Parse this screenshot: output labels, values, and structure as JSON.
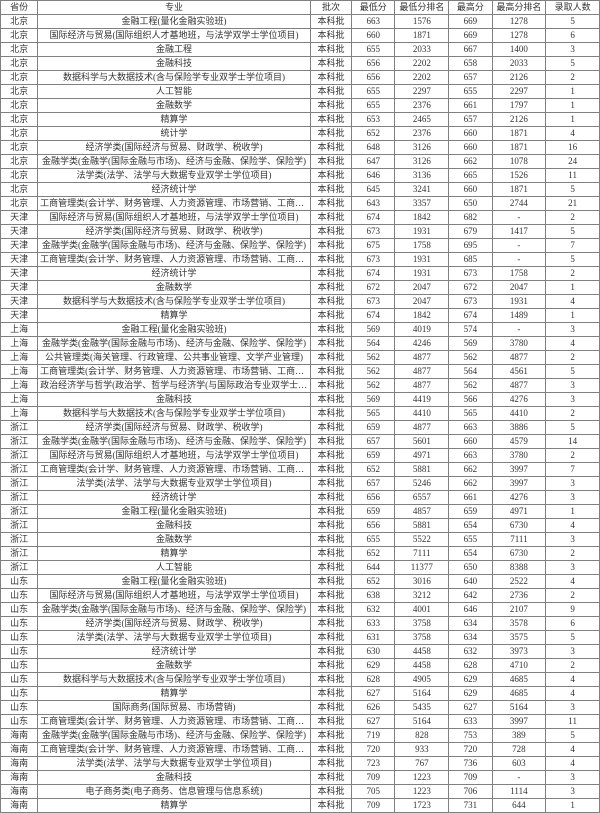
{
  "headers": [
    "省份",
    "专业",
    "批次",
    "最低分",
    "最低分排名",
    "最高分",
    "最高分排名",
    "录取人数"
  ],
  "rows": [
    [
      "北京",
      "金融工程(量化金融实验班)",
      "本科批",
      "663",
      "1576",
      "669",
      "1278",
      "5"
    ],
    [
      "北京",
      "国际经济与贸易(国际组织人才基地班，与法学双学士学位项目)",
      "本科批",
      "660",
      "1871",
      "669",
      "1278",
      "6"
    ],
    [
      "北京",
      "金融工程",
      "本科批",
      "655",
      "2033",
      "667",
      "1400",
      "3"
    ],
    [
      "北京",
      "金融科技",
      "本科批",
      "656",
      "2202",
      "658",
      "2033",
      "5"
    ],
    [
      "北京",
      "数据科学与大数据技术(含与保险学专业双学士学位项目)",
      "本科批",
      "656",
      "2202",
      "657",
      "2126",
      "2"
    ],
    [
      "北京",
      "人工智能",
      "本科批",
      "655",
      "2297",
      "655",
      "2297",
      "1"
    ],
    [
      "北京",
      "金融数学",
      "本科批",
      "655",
      "2376",
      "661",
      "1797",
      "1"
    ],
    [
      "北京",
      "精算学",
      "本科批",
      "653",
      "2465",
      "657",
      "2126",
      "1"
    ],
    [
      "北京",
      "统计学",
      "本科批",
      "652",
      "2376",
      "660",
      "1871",
      "4"
    ],
    [
      "北京",
      "经济学类(国际经济与贸易、财政学、税收学)",
      "本科批",
      "648",
      "3126",
      "660",
      "1871",
      "16"
    ],
    [
      "北京",
      "金融学类(金融学(国际金融与市场)、经济与金融、保险学、保险学)",
      "本科批",
      "647",
      "3126",
      "662",
      "1078",
      "24"
    ],
    [
      "北京",
      "法学类(法学、法学与大数据专业双学士学位项目)",
      "本科批",
      "646",
      "3136",
      "665",
      "1526",
      "11"
    ],
    [
      "北京",
      "经济统计学",
      "本科批",
      "645",
      "3241",
      "660",
      "1871",
      "5"
    ],
    [
      "北京",
      "工商管理类(会计学、财务管理、人力资源管理、市场营销、工商管理)",
      "本科批",
      "643",
      "3357",
      "650",
      "2744",
      "21"
    ],
    [
      "天津",
      "国际经济与贸易(国际组织人才基地班，与法学双学士学位项目)",
      "本科批",
      "674",
      "1842",
      "682",
      "-",
      "2"
    ],
    [
      "天津",
      "经济学类(国际经济与贸易、财政学、税收学)",
      "本科批",
      "673",
      "1931",
      "679",
      "1417",
      "5"
    ],
    [
      "天津",
      "金融学类(金融学(国际金融与市场)、经济与金融、保险学、保险学)",
      "本科批",
      "675",
      "1758",
      "695",
      "-",
      "7"
    ],
    [
      "天津",
      "工商管理类(会计学、财务管理、人力资源管理、市场营销、工商管理)",
      "本科批",
      "673",
      "1931",
      "685",
      "-",
      "5"
    ],
    [
      "天津",
      "经济统计学",
      "本科批",
      "674",
      "1931",
      "673",
      "1758",
      "2"
    ],
    [
      "天津",
      "金融数学",
      "本科批",
      "672",
      "2047",
      "672",
      "2047",
      "1"
    ],
    [
      "天津",
      "数据科学与大数据技术(含与保险学专业双学士学位项目)",
      "本科批",
      "673",
      "2047",
      "673",
      "1931",
      "4"
    ],
    [
      "天津",
      "精算学",
      "本科批",
      "674",
      "1842",
      "674",
      "1489",
      "1"
    ],
    [
      "上海",
      "金融工程(量化金融实验班)",
      "本科批",
      "569",
      "4019",
      "574",
      "-",
      "3"
    ],
    [
      "上海",
      "金融学类(金融学(国际金融与市场)、经济与金融、保险学、保险学)",
      "本科批",
      "564",
      "4246",
      "569",
      "3780",
      "4"
    ],
    [
      "上海",
      "公共管理类(海关管理、行政管理、公共事业管理、文学产业管理)",
      "本科批",
      "562",
      "4877",
      "562",
      "4877",
      "2"
    ],
    [
      "上海",
      "工商管理类(会计学、财务管理、人力资源管理、市场营销、工商管理)",
      "本科批",
      "562",
      "4877",
      "564",
      "4561",
      "5"
    ],
    [
      "上海",
      "政治经济学与哲学(政治学、哲学与经济学(与国际政治专业双学士学位项目、国际政治(含与统计学专业双学士学位项目))",
      "本科批",
      "562",
      "4877",
      "562",
      "4877",
      "3"
    ],
    [
      "上海",
      "金融科技",
      "本科批",
      "569",
      "4419",
      "566",
      "4276",
      "3"
    ],
    [
      "上海",
      "数据科学与大数据技术(含与保险学专业双学士学位项目)",
      "本科批",
      "565",
      "4410",
      "565",
      "4410",
      "2"
    ],
    [
      "浙江",
      "经济学类(国际经济与贸易、财政学、税收学)",
      "本科批",
      "659",
      "4877",
      "663",
      "3886",
      "5"
    ],
    [
      "浙江",
      "金融学类(金融学(国际金融与市场)、经济与金融、保险学、保险学)",
      "本科批",
      "657",
      "5601",
      "660",
      "4579",
      "14"
    ],
    [
      "浙江",
      "国际经济与贸易(国际组织人才基地班，与法学双学士学位项目)",
      "本科批",
      "659",
      "4971",
      "663",
      "3780",
      "2"
    ],
    [
      "浙江",
      "工商管理类(会计学、财务管理、人力资源管理、市场营销、工商管理)",
      "本科批",
      "652",
      "5881",
      "662",
      "3997",
      "7"
    ],
    [
      "浙江",
      "法学类(法学、法学与大数据专业双学士学位项目)",
      "本科批",
      "657",
      "5246",
      "662",
      "3997",
      "3"
    ],
    [
      "浙江",
      "经济统计学",
      "本科批",
      "656",
      "6557",
      "661",
      "4276",
      "3"
    ],
    [
      "浙江",
      "金融工程(量化金融实验班)",
      "本科批",
      "659",
      "4857",
      "659",
      "4971",
      "1"
    ],
    [
      "浙江",
      "金融科技",
      "本科批",
      "656",
      "5881",
      "654",
      "6730",
      "4"
    ],
    [
      "浙江",
      "金融数学",
      "本科批",
      "655",
      "5522",
      "655",
      "7111",
      "3"
    ],
    [
      "浙江",
      "精算学",
      "本科批",
      "652",
      "7111",
      "654",
      "6730",
      "2"
    ],
    [
      "浙江",
      "人工智能",
      "本科批",
      "644",
      "11377",
      "650",
      "8388",
      "3"
    ],
    [
      "山东",
      "金融工程(量化金融实验班)",
      "本科批",
      "652",
      "3016",
      "640",
      "2522",
      "4"
    ],
    [
      "山东",
      "国际经济与贸易(国际组织人才基地班，与法学双学士学位项目)",
      "本科批",
      "638",
      "3212",
      "642",
      "2736",
      "2"
    ],
    [
      "山东",
      "金融学类(金融学(国际金融与市场)、经济与金融、保险学、保险学)",
      "本科批",
      "632",
      "4001",
      "646",
      "2107",
      "9"
    ],
    [
      "山东",
      "经济学类(国际经济与贸易、财政学、税收学)",
      "本科批",
      "633",
      "3758",
      "634",
      "3578",
      "6"
    ],
    [
      "山东",
      "法学类(法学、法学与大数据专业双学士学位项目)",
      "本科批",
      "631",
      "3758",
      "634",
      "3575",
      "5"
    ],
    [
      "山东",
      "经济统计学",
      "本科批",
      "630",
      "4458",
      "632",
      "3973",
      "3"
    ],
    [
      "山东",
      "金融数学",
      "本科批",
      "629",
      "4458",
      "628",
      "4710",
      "2"
    ],
    [
      "山东",
      "数据科学与大数据技术(含与保险学专业双学士学位项目)",
      "本科批",
      "628",
      "4905",
      "629",
      "4685",
      "4"
    ],
    [
      "山东",
      "精算学",
      "本科批",
      "627",
      "5164",
      "629",
      "4685",
      "4"
    ],
    [
      "山东",
      "国际商务(国际贸易、市场营销)",
      "本科批",
      "626",
      "5435",
      "627",
      "5164",
      "3"
    ],
    [
      "山东",
      "工商管理类(会计学、财务管理、人力资源管理、市场营销、工商管理)",
      "本科批",
      "627",
      "5164",
      "633",
      "3997",
      "11"
    ],
    [
      "海南",
      "金融学类(金融学(国际金融与市场)、经济与金融、保险学、保险学)",
      "本科批",
      "719",
      "828",
      "753",
      "389",
      "5"
    ],
    [
      "海南",
      "工商管理类(会计学、财务管理、人力资源管理、市场营销、工商管理)",
      "本科批",
      "720",
      "933",
      "720",
      "728",
      "4"
    ],
    [
      "海南",
      "法学类(法学、法学与大数据专业双学士学位项目)",
      "本科批",
      "723",
      "767",
      "736",
      "603",
      "4"
    ],
    [
      "海南",
      "金融科技",
      "本科批",
      "709",
      "1223",
      "709",
      "-",
      "3"
    ],
    [
      "海南",
      "电子商务类(电子商务、信息管理与信息系统)",
      "本科批",
      "705",
      "1223",
      "706",
      "1114",
      "3"
    ],
    [
      "海南",
      "精算学",
      "本科批",
      "709",
      "1723",
      "731",
      "644",
      "1"
    ]
  ]
}
